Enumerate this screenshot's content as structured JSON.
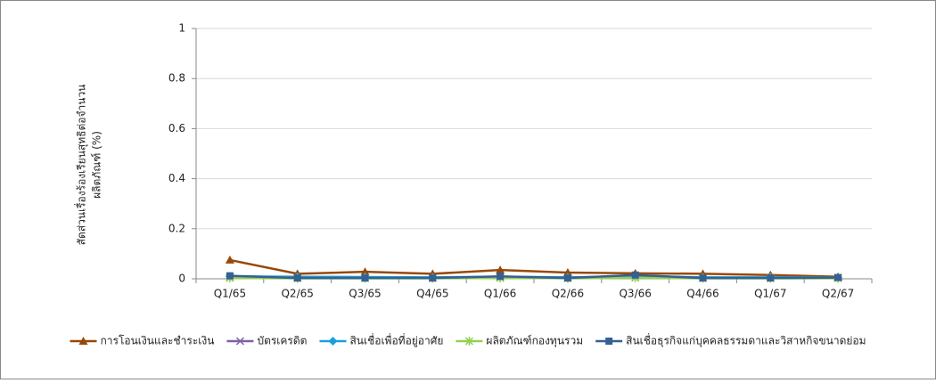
{
  "chart_data": {
    "type": "line",
    "ylabel_lines": [
      "สัดส่วนเรื่องร้องเรียนสุทธิต่อจำนวน",
      "ผลิตภัณฑ์ (%)"
    ],
    "categories": [
      "Q1/65",
      "Q2/65",
      "Q3/65",
      "Q4/65",
      "Q1/66",
      "Q2/66",
      "Q3/66",
      "Q4/66",
      "Q1/67",
      "Q2/67"
    ],
    "series": [
      {
        "name": "การโอนเงินและชำระเงิน",
        "color": "#984807",
        "marker": "triangle",
        "values": [
          0.075,
          0.02,
          0.028,
          0.02,
          0.035,
          0.025,
          0.022,
          0.02,
          0.015,
          0.008
        ]
      },
      {
        "name": "บัตรเครดิต",
        "color": "#7f60a8",
        "marker": "x",
        "values": [
          0.005,
          0.004,
          0.004,
          0.004,
          0.006,
          0.004,
          0.005,
          0.004,
          0.004,
          0.004
        ]
      },
      {
        "name": "สินเชื่อเพื่อที่อยู่อาศัย",
        "color": "#1aa0e0",
        "marker": "diamond",
        "values": [
          0.01,
          0.008,
          0.007,
          0.006,
          0.008,
          0.006,
          0.01,
          0.006,
          0.006,
          0.005
        ]
      },
      {
        "name": "ผลิตภัณฑ์กองทุนรวม",
        "color": "#92d050",
        "marker": "asterisk",
        "values": [
          0.003,
          0.002,
          0.002,
          0.002,
          0.003,
          0.002,
          0.004,
          0.002,
          0.002,
          0.002
        ]
      },
      {
        "name": "สินเชื่อธุรกิจแก่บุคคลธรรมดาและวิสาหกิจขนาดย่อม",
        "color": "#366092",
        "marker": "square",
        "values": [
          0.012,
          0.003,
          0.003,
          0.003,
          0.01,
          0.003,
          0.015,
          0.003,
          0.003,
          0.005
        ]
      }
    ],
    "ylim": [
      0,
      1
    ],
    "yticks": [
      0,
      0.2,
      0.4,
      0.6,
      0.8,
      1
    ],
    "grid": true,
    "legend": "bottom"
  }
}
